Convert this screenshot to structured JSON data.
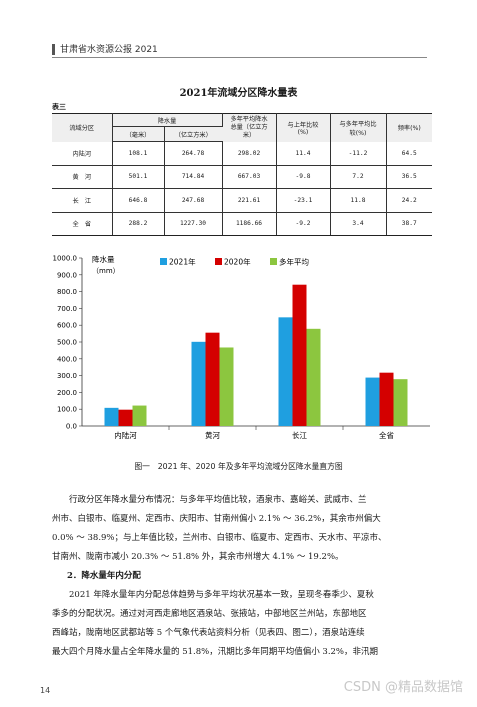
{
  "header": {
    "running_title": "甘肃省水资源公报 2021"
  },
  "table": {
    "title": "2021年流域分区降水量表",
    "number": "表三",
    "col_region": "流域分区",
    "col_precip": "降水量",
    "col_precip_mm": "（毫米）",
    "col_precip_vol": "（亿立方米）",
    "col_avg": "多年平均降水总量（亿立方米）",
    "col_vs_last": "与上年比较(%)",
    "col_vs_avg": "与多年平均比较(%)",
    "col_rate": "频率(%)",
    "rows": [
      {
        "name": "内陆河",
        "mm": "108.1",
        "vol": "264.78",
        "avg": "298.02",
        "last": "11.4",
        "vsavg": "-11.2",
        "rate": "64.5"
      },
      {
        "name": "黄　河",
        "mm": "501.1",
        "vol": "714.84",
        "avg": "667.03",
        "last": "-9.8",
        "vsavg": "7.2",
        "rate": "36.5"
      },
      {
        "name": "长　江",
        "mm": "646.8",
        "vol": "247.68",
        "avg": "221.61",
        "last": "-23.1",
        "vsavg": "11.8",
        "rate": "24.2"
      },
      {
        "name": "全　省",
        "mm": "288.2",
        "vol": "1227.30",
        "avg": "1186.66",
        "last": "-9.2",
        "vsavg": "3.4",
        "rate": "38.7"
      }
    ]
  },
  "chart_data": {
    "type": "bar",
    "ylabel": "降水量",
    "yunit": "（mm）",
    "ylim": [
      0,
      1000
    ],
    "yticks": [
      "0.0",
      "100.0",
      "200.0",
      "300.0",
      "400.0",
      "500.0",
      "600.0",
      "700.0",
      "800.0",
      "900.0",
      "1000.0"
    ],
    "categories": [
      "内陆河",
      "黄河",
      "长江",
      "全省"
    ],
    "series": [
      {
        "name": "2021年",
        "color": "#1f9fe0",
        "values": [
          108.1,
          501.1,
          646.8,
          288.2
        ]
      },
      {
        "name": "2020年",
        "color": "#d40000",
        "values": [
          97.1,
          555.5,
          841.1,
          317.4
        ]
      },
      {
        "name": "多年平均",
        "color": "#8cc63f",
        "values": [
          121.7,
          467.4,
          578.5,
          278.7
        ]
      }
    ],
    "legend_position": "top",
    "grid": false,
    "caption": "图一　2021 年、2020 年及多年平均流域分区降水量直方图"
  },
  "body": {
    "p1": [
      "行政分区年降水量分布情况：与多年平均值比较，酒泉市、嘉峪关、武威市、兰",
      "州市、白银市、临夏州、定西市、庆阳市、甘南州偏小 2.1% ～ 36.2%，其余市州偏大",
      "0.0% ～ 38.9%；与上年值比较，兰州市、白银市、临夏市、定西市、天水市、平凉市、",
      "甘南州、陇南市减小 20.3% ～ 51.8% 外，其余市州增大 4.1% ～ 19.2%。"
    ],
    "section_title": "2．降水量年内分配",
    "p2": [
      "2021 年降水量年内分配总体趋势与多年平均状况基本一致，呈现冬春季少、夏秋",
      "季多的分配状况。通过对河西走廊地区酒泉站、张掖站，中部地区兰州站，东部地区",
      "西峰站，陇南地区武都站等 5 个气象代表站资料分析（见表四、图二），酒泉站连续",
      "最大四个月降水量占全年降水量的 51.8%，汛期比多年同期平均值偏小 3.2%，非汛期"
    ]
  },
  "page_number": "14",
  "watermark": "CSDN @精品数据馆"
}
